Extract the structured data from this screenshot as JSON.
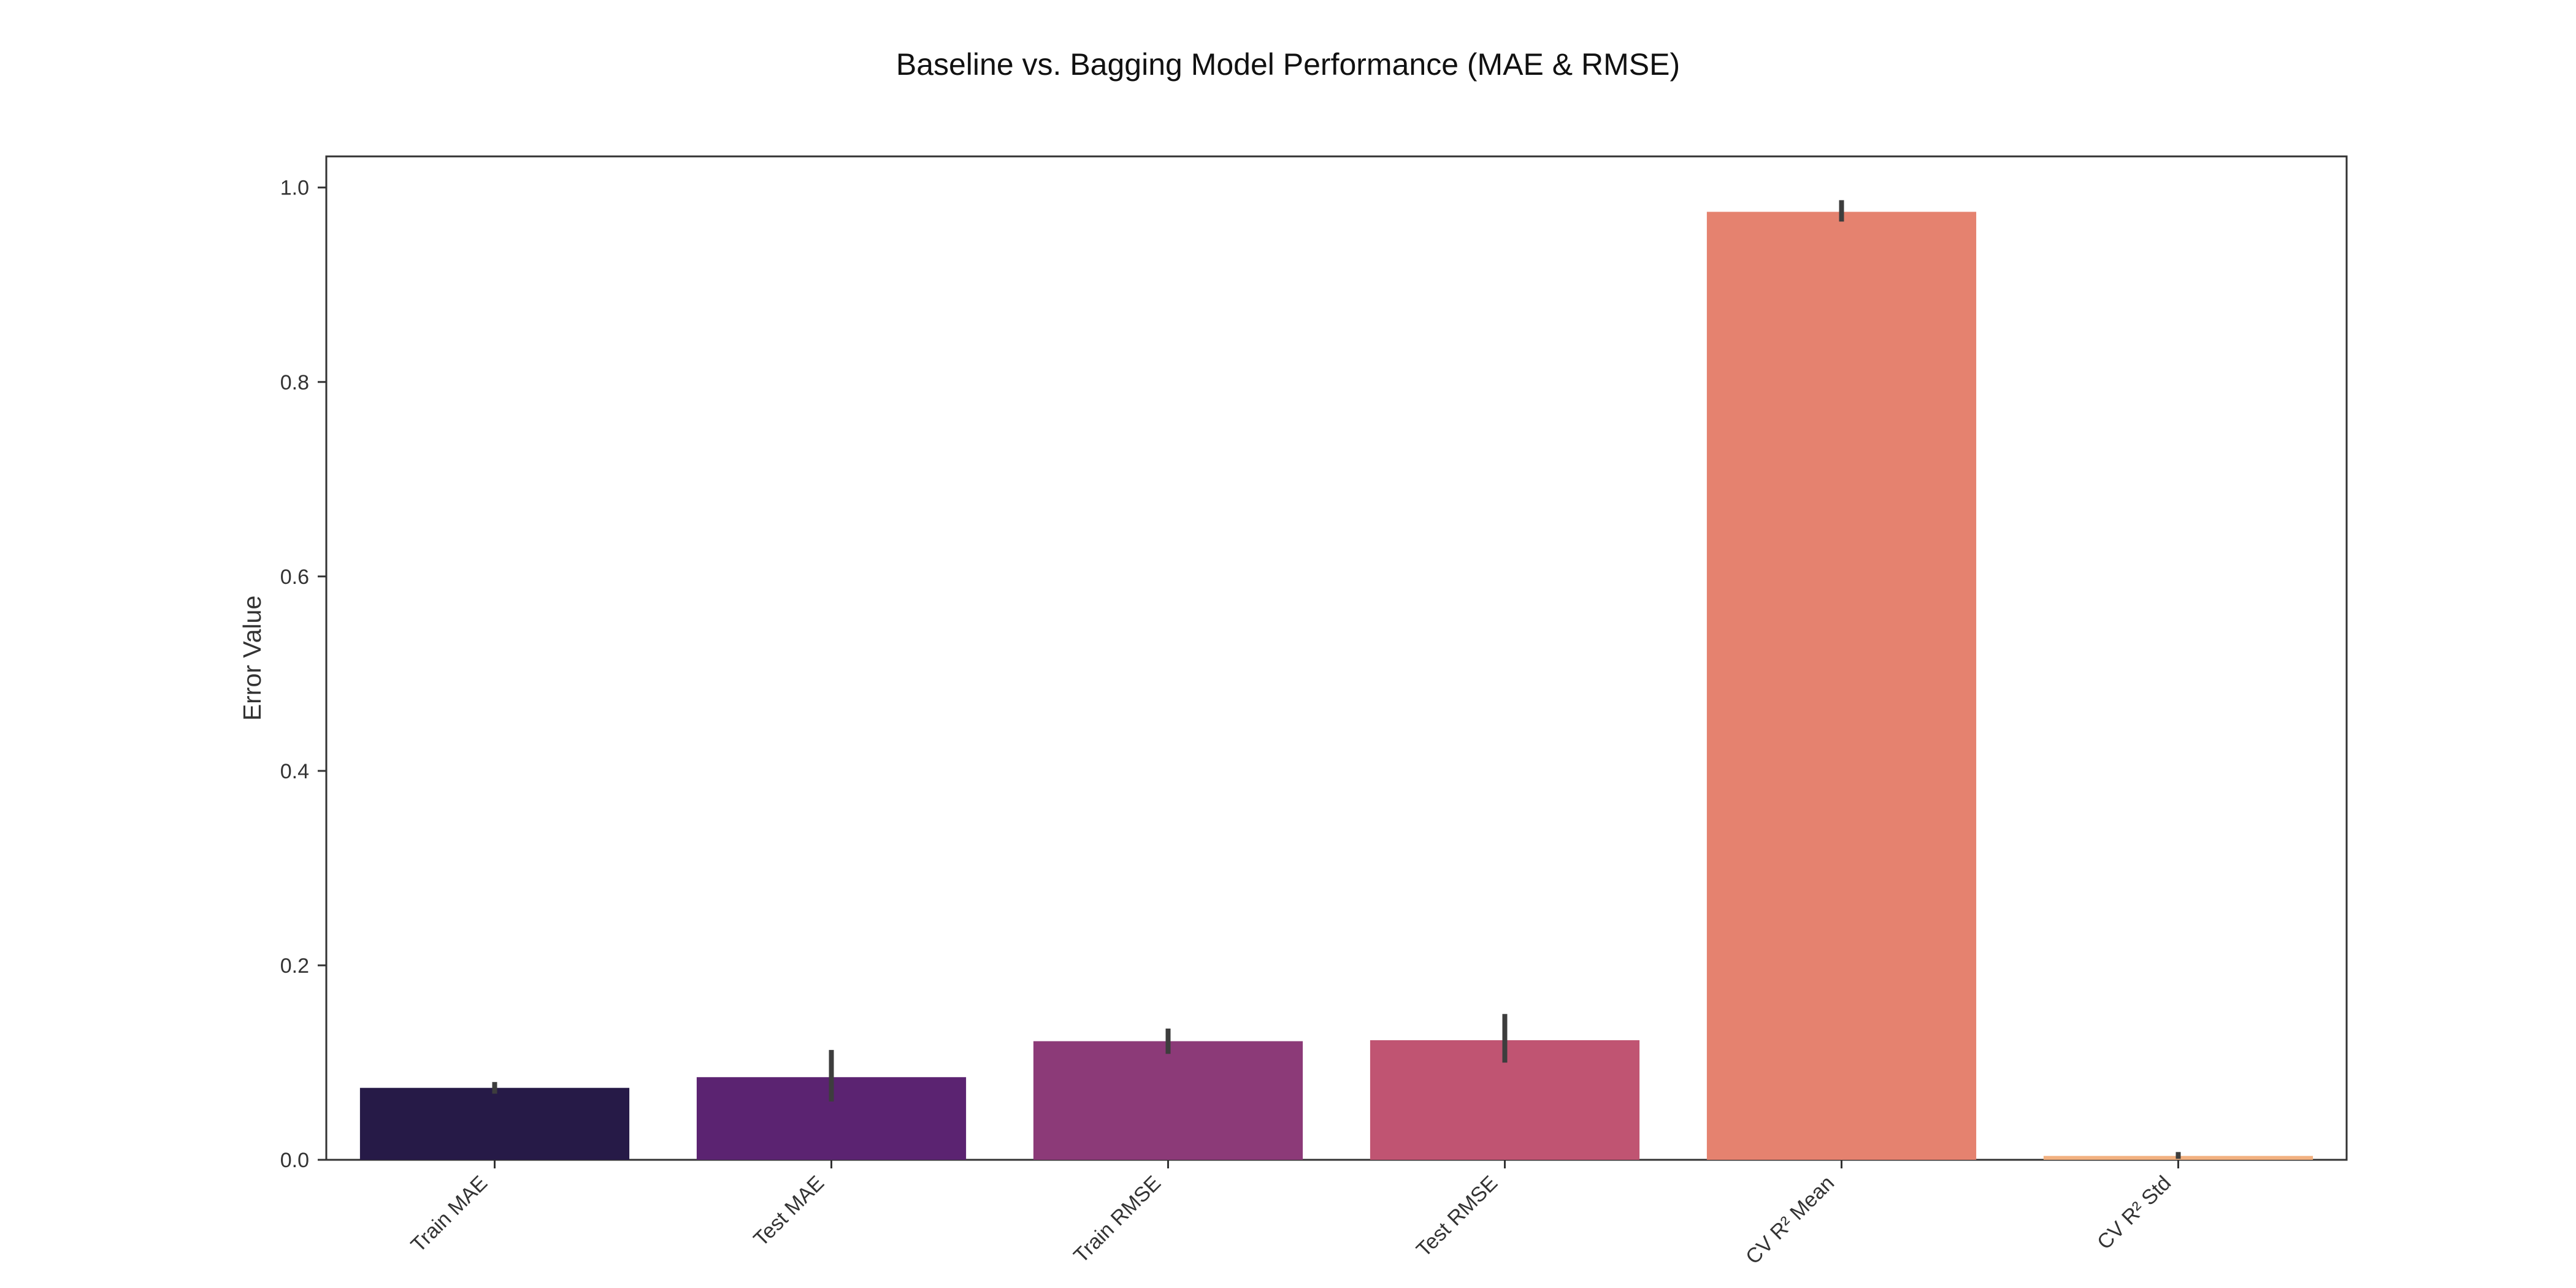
{
  "chart_data": {
    "type": "bar",
    "title": "Baseline vs. Bagging Model Performance (MAE & RMSE)",
    "xlabel": "",
    "ylabel": "Error Value",
    "categories": [
      "Train MAE",
      "Test MAE",
      "Train RMSE",
      "Test RMSE",
      "CV R² Mean",
      "CV R² Std"
    ],
    "values": [
      0.074,
      0.085,
      0.122,
      0.123,
      0.975,
      0.004
    ],
    "error_low": [
      0.068,
      0.06,
      0.109,
      0.1,
      0.965,
      0.001
    ],
    "error_high": [
      0.08,
      0.113,
      0.135,
      0.15,
      0.987,
      0.008
    ],
    "colors": [
      "#261a47",
      "#5b2371",
      "#8c3a78",
      "#c05472",
      "#e5826f",
      "#f2b180"
    ],
    "ylim": [
      -0.0,
      1.032
    ],
    "yticks": [
      "0.0",
      "0.2",
      "0.4",
      "0.6",
      "0.8",
      "1.0"
    ],
    "grid": false,
    "legend": false
  }
}
